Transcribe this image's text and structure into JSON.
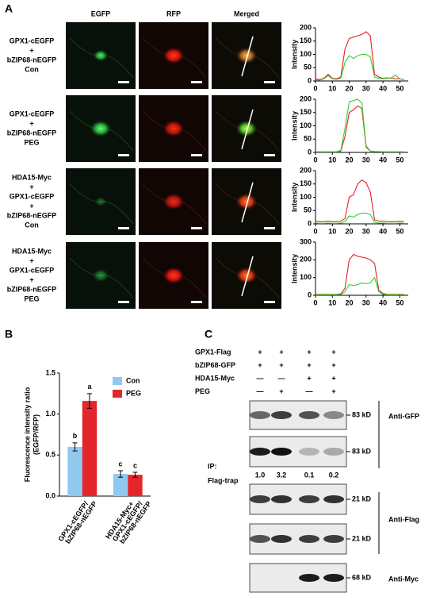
{
  "figure": {
    "panel_labels": [
      "A",
      "B",
      "C"
    ]
  },
  "panel_a": {
    "columns": [
      "EGFP",
      "RFP",
      "Merged"
    ],
    "rows": [
      [
        "GPX1-cEGFP",
        "+",
        "bZIP68-nEGFP",
        "Con"
      ],
      [
        "GPX1-cEGFP",
        "+",
        "bZIP68-nEGFP",
        "PEG"
      ],
      [
        "HDA15-Myc",
        "+",
        "GPX1-cEGFP",
        "+",
        "bZIP68-nEGFP",
        "Con"
      ],
      [
        "HDA15-Myc",
        "+",
        "GPX1-cEGFP",
        "+",
        "bZIP68-nEGFP",
        "PEG"
      ]
    ]
  },
  "chart_data": [
    {
      "type": "line",
      "y_label": "Intensity",
      "x": [
        0,
        2.5,
        5,
        7.5,
        10,
        12.5,
        15,
        17.5,
        20,
        22.5,
        25,
        27.5,
        30,
        32.5,
        35,
        37.5,
        40,
        42.5,
        45,
        47.5,
        50,
        52.5
      ],
      "xlim": [
        0,
        55
      ],
      "xticks": [
        0,
        10,
        20,
        30,
        40,
        50
      ],
      "ylim": [
        0,
        200
      ],
      "yticks": [
        0,
        50,
        100,
        150,
        200
      ],
      "series": [
        {
          "color": "#e8201f",
          "values": [
            8,
            5,
            10,
            25,
            10,
            8,
            15,
            120,
            160,
            165,
            170,
            175,
            185,
            170,
            25,
            15,
            10,
            12,
            10,
            8,
            8,
            5
          ]
        },
        {
          "color": "#2fcf2f",
          "values": [
            5,
            3,
            8,
            20,
            8,
            6,
            10,
            70,
            95,
            85,
            95,
            100,
            100,
            90,
            15,
            10,
            8,
            10,
            12,
            22,
            8,
            5
          ]
        }
      ]
    },
    {
      "type": "line",
      "y_label": "Intensity",
      "x": [
        0,
        2.5,
        5,
        7.5,
        10,
        12.5,
        15,
        17.5,
        20,
        22.5,
        25,
        27.5,
        30,
        32.5,
        35,
        37.5,
        40,
        42.5,
        45,
        47.5,
        50,
        52.5
      ],
      "xlim": [
        0,
        55
      ],
      "xticks": [
        0,
        10,
        20,
        30,
        40,
        50
      ],
      "ylim": [
        0,
        200
      ],
      "yticks": [
        0,
        50,
        100,
        150,
        200
      ],
      "series": [
        {
          "color": "#e8201f",
          "values": [
            2,
            2,
            2,
            2,
            2,
            2,
            5,
            60,
            150,
            160,
            175,
            165,
            20,
            5,
            3,
            3,
            2,
            2,
            2,
            2,
            2,
            2
          ]
        },
        {
          "color": "#2fcf2f",
          "values": [
            2,
            2,
            2,
            2,
            2,
            2,
            8,
            90,
            190,
            195,
            200,
            185,
            25,
            5,
            3,
            3,
            2,
            2,
            2,
            2,
            2,
            2
          ]
        }
      ]
    },
    {
      "type": "line",
      "y_label": "Intensity",
      "x": [
        0,
        2.5,
        5,
        7.5,
        10,
        12.5,
        15,
        17.5,
        20,
        22.5,
        25,
        27.5,
        30,
        32.5,
        35,
        37.5,
        40,
        42.5,
        45,
        47.5,
        50,
        52.5
      ],
      "xlim": [
        0,
        55
      ],
      "xticks": [
        0,
        10,
        20,
        30,
        40,
        50
      ],
      "ylim": [
        0,
        200
      ],
      "yticks": [
        0,
        50,
        100,
        150,
        200
      ],
      "series": [
        {
          "color": "#e8201f",
          "values": [
            10,
            8,
            8,
            10,
            8,
            8,
            10,
            20,
            100,
            110,
            150,
            165,
            155,
            120,
            15,
            10,
            10,
            8,
            8,
            8,
            10,
            8
          ]
        },
        {
          "color": "#2fcf2f",
          "values": [
            3,
            2,
            2,
            3,
            2,
            2,
            3,
            8,
            30,
            25,
            35,
            40,
            40,
            35,
            6,
            3,
            3,
            2,
            2,
            2,
            3,
            2
          ]
        }
      ]
    },
    {
      "type": "line",
      "y_label": "Intensity",
      "x": [
        0,
        2.5,
        5,
        7.5,
        10,
        12.5,
        15,
        17.5,
        20,
        22.5,
        25,
        27.5,
        30,
        32.5,
        35,
        37.5,
        40,
        42.5,
        45,
        47.5,
        50,
        52.5
      ],
      "xlim": [
        0,
        55
      ],
      "xticks": [
        0,
        10,
        20,
        30,
        40,
        50
      ],
      "ylim": [
        0,
        300
      ],
      "yticks": [
        0,
        100,
        200,
        300
      ],
      "series": [
        {
          "color": "#e8201f",
          "values": [
            5,
            5,
            5,
            5,
            5,
            5,
            8,
            40,
            200,
            230,
            220,
            215,
            210,
            200,
            180,
            30,
            10,
            5,
            5,
            5,
            5,
            5
          ]
        },
        {
          "color": "#2fcf2f",
          "values": [
            3,
            3,
            3,
            3,
            3,
            3,
            5,
            20,
            60,
            55,
            60,
            70,
            65,
            70,
            100,
            20,
            5,
            3,
            3,
            3,
            3,
            3
          ]
        }
      ]
    },
    {
      "type": "bar",
      "y_label": [
        "Fluorescence intensity ratio",
        "(EGFP/RFP)"
      ],
      "categories": [
        [
          "GPX1-cEGFP/",
          "bZIP68-nEGFP"
        ],
        [
          "HDA15-Myc+",
          "GPX1-cEGFP/",
          "bZIP68-nEGFP"
        ]
      ],
      "ylim": [
        0,
        1.5
      ],
      "yticks": [
        {
          "value": 0,
          "label": "0.0"
        },
        0.5,
        {
          "value": 1,
          "label": "1.0"
        },
        1.5
      ],
      "legend": "upper right",
      "series": [
        {
          "name": "Con",
          "color": "#91c8ef",
          "values": [
            0.6,
            0.27
          ],
          "errors": [
            0.05,
            0.04
          ],
          "letters": [
            "b",
            "c"
          ]
        },
        {
          "name": "PEG",
          "color": "#e3262b",
          "values": [
            1.16,
            0.26
          ],
          "errors": [
            0.09,
            0.03
          ],
          "letters": [
            "a",
            "c"
          ]
        }
      ]
    }
  ],
  "panel_c": {
    "conditions": [
      {
        "label": "GPX1-Flag",
        "lanes": [
          "+",
          "+",
          "+",
          "+"
        ]
      },
      {
        "label": "bZIP68-GFP",
        "lanes": [
          "+",
          "+",
          "+",
          "+"
        ]
      },
      {
        "label": "HDA15-Myc",
        "lanes": [
          "—",
          "—",
          "+",
          "+"
        ]
      },
      {
        "label": "PEG",
        "lanes": [
          "—",
          "+",
          "—",
          "+"
        ]
      }
    ],
    "blots": [
      {
        "size": "83 kD",
        "bands": [
          0.6,
          0.8,
          0.7,
          0.45
        ]
      },
      {
        "size": "83 kD",
        "bands": [
          0.95,
          1.0,
          0.25,
          0.3
        ]
      },
      {
        "size": "21 kD",
        "bands": [
          0.8,
          0.85,
          0.8,
          0.85
        ]
      },
      {
        "size": "21 kD",
        "bands": [
          0.7,
          0.85,
          0.8,
          0.8
        ]
      },
      {
        "size": "68 kD",
        "bands": [
          0,
          0,
          0.95,
          0.95
        ]
      }
    ],
    "quantification": [
      "1.0",
      "3.2",
      "0.1",
      "0.2"
    ],
    "ip_label": [
      "IP:",
      "Flag-trap"
    ],
    "antibodies": [
      "Anti-GFP",
      "Anti-Flag",
      "Anti-Myc"
    ]
  }
}
